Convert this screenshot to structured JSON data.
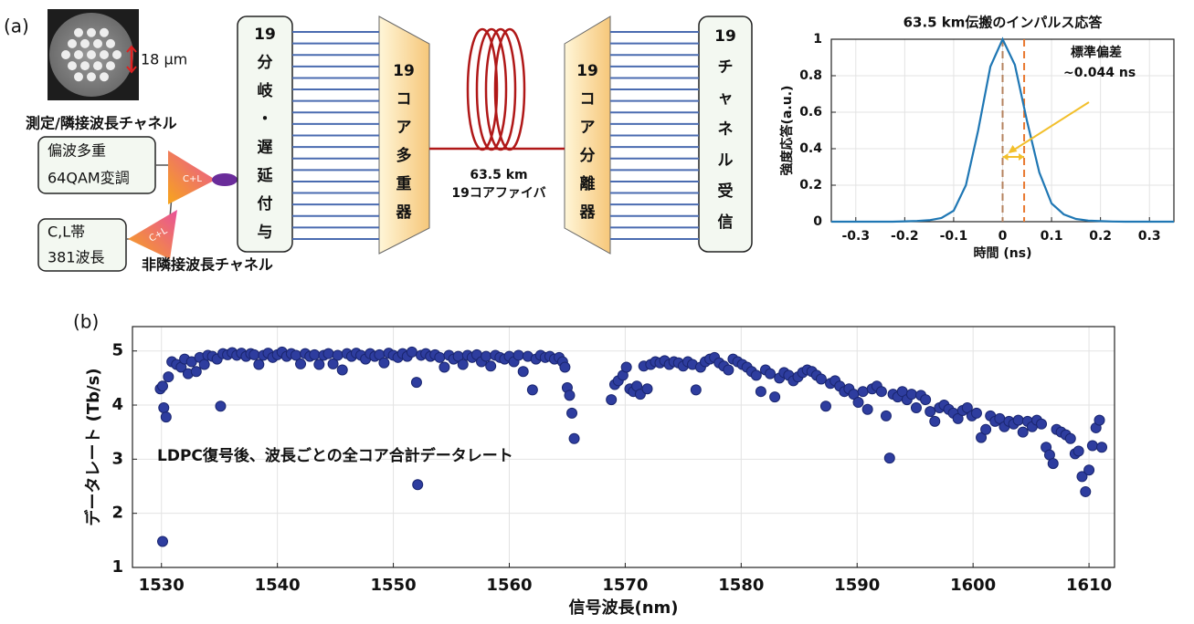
{
  "diagram": {
    "panel_label": "(a)",
    "core_pitch": "18 μm",
    "measured_channel": "測定/隣接波長チャネル",
    "modulation_box": [
      "偏波多重",
      "64QAM変調"
    ],
    "combiner_label": "C+L",
    "band_box": [
      "C,L帯",
      "381波長"
    ],
    "non_adjacent_channel": "非隣接波長チャネル",
    "splitter": [
      "19",
      "分",
      "岐",
      "・",
      "遅",
      "延",
      "付",
      "与"
    ],
    "mux": [
      "19",
      "コ",
      "ア",
      "多",
      "重",
      "器"
    ],
    "fiber": [
      "63.5 km",
      "19コアファイバ"
    ],
    "demux": [
      "19",
      "コ",
      "ア",
      "分",
      "離",
      "器"
    ],
    "receiver": [
      "19",
      "チ",
      "ャ",
      "ネ",
      "ル",
      "受",
      "信"
    ]
  },
  "chart_data": [
    {
      "type": "line",
      "title": "63.5 km伝搬のインパルス応答",
      "x": [
        -0.35,
        -0.325,
        -0.3,
        -0.275,
        -0.25,
        -0.225,
        -0.2,
        -0.175,
        -0.15,
        -0.125,
        -0.1,
        -0.075,
        -0.05,
        -0.025,
        0,
        0.025,
        0.05,
        0.075,
        0.1,
        0.125,
        0.15,
        0.175,
        0.2,
        0.225,
        0.25,
        0.275,
        0.3,
        0.325,
        0.35
      ],
      "values": [
        0,
        0,
        0,
        0,
        0,
        0,
        0.002,
        0.004,
        0.008,
        0.02,
        0.06,
        0.2,
        0.5,
        0.85,
        1,
        0.86,
        0.55,
        0.27,
        0.1,
        0.04,
        0.015,
        0.006,
        0.003,
        0.001,
        0,
        0,
        0,
        0,
        0
      ],
      "color": "#1f77b4",
      "xlim": [
        -0.35,
        0.35
      ],
      "xticks": [
        -0.3,
        -0.2,
        -0.1,
        0,
        0.1,
        0.2,
        0.3
      ],
      "ylim": [
        0,
        1
      ],
      "yticks": [
        0,
        0.2,
        0.4,
        0.6,
        0.8,
        1
      ],
      "xlabel": "時間 (ns)",
      "ylabel": "強度応答(a.u.)",
      "grid": true,
      "vlines": [
        0,
        0.044
      ],
      "vline_colors": [
        "#b5835f",
        "#e8772e"
      ],
      "annotation": [
        "標準偏差",
        "~0.044 ns"
      ],
      "annotation_color": "#f2bf2b"
    },
    {
      "type": "scatter",
      "panel_label": "(b)",
      "annotation": "LDPC復号後、波長ごとの全コア合計データレート",
      "x": [
        1529.9,
        1530.1,
        1530.2,
        1530.4,
        1530.1,
        1530.6,
        1530.9,
        1531.3,
        1531.7,
        1532.0,
        1532.3,
        1532.6,
        1533.0,
        1533.3,
        1533.7,
        1534.0,
        1534.4,
        1534.8,
        1535.1,
        1535.3,
        1535.7,
        1536.1,
        1536.5,
        1536.9,
        1537.3,
        1537.7,
        1538.0,
        1538.4,
        1538.8,
        1539.2,
        1539.6,
        1540.0,
        1540.4,
        1540.8,
        1541.2,
        1541.6,
        1542.0,
        1542.4,
        1542.8,
        1543.2,
        1543.6,
        1544.0,
        1544.4,
        1544.8,
        1545.2,
        1545.6,
        1546.0,
        1546.4,
        1546.8,
        1547.2,
        1547.6,
        1548.0,
        1548.4,
        1548.8,
        1549.2,
        1549.6,
        1550.0,
        1550.4,
        1550.8,
        1551.2,
        1551.6,
        1552.0,
        1552.1,
        1552.4,
        1552.8,
        1553.2,
        1553.6,
        1554.0,
        1554.4,
        1554.8,
        1555.2,
        1555.6,
        1556.0,
        1556.4,
        1556.8,
        1557.2,
        1557.6,
        1558.0,
        1558.4,
        1558.8,
        1559.2,
        1559.6,
        1560.0,
        1560.4,
        1560.8,
        1561.2,
        1561.6,
        1562.0,
        1562.3,
        1562.7,
        1563.1,
        1563.5,
        1563.9,
        1564.3,
        1564.6,
        1564.8,
        1565.0,
        1565.2,
        1565.4,
        1565.6,
        1568.8,
        1569.1,
        1569.4,
        1569.8,
        1570.1,
        1570.4,
        1570.7,
        1571.0,
        1571.3,
        1571.6,
        1571.9,
        1572.2,
        1572.6,
        1573.0,
        1573.4,
        1573.8,
        1574.2,
        1574.6,
        1575.0,
        1575.4,
        1575.8,
        1576.1,
        1576.5,
        1576.9,
        1577.3,
        1577.7,
        1578.1,
        1578.5,
        1578.9,
        1579.3,
        1579.7,
        1580.1,
        1580.5,
        1580.9,
        1581.3,
        1581.7,
        1582.1,
        1582.5,
        1582.9,
        1583.3,
        1583.7,
        1584.1,
        1584.5,
        1584.9,
        1585.3,
        1585.7,
        1586.1,
        1586.5,
        1586.9,
        1587.3,
        1587.7,
        1588.1,
        1588.5,
        1588.9,
        1589.3,
        1589.7,
        1590.1,
        1590.5,
        1590.9,
        1591.3,
        1591.7,
        1592.1,
        1592.5,
        1592.8,
        1593.1,
        1593.5,
        1593.9,
        1594.3,
        1594.7,
        1595.1,
        1595.5,
        1595.9,
        1596.3,
        1596.7,
        1597.1,
        1597.5,
        1597.9,
        1598.3,
        1598.7,
        1599.1,
        1599.5,
        1599.9,
        1600.3,
        1600.7,
        1601.1,
        1601.5,
        1601.9,
        1602.3,
        1602.7,
        1603.1,
        1603.5,
        1603.9,
        1604.3,
        1604.7,
        1605.1,
        1605.5,
        1605.9,
        1606.3,
        1606.6,
        1606.9,
        1607.2,
        1607.6,
        1608.0,
        1608.4,
        1608.8,
        1609.1,
        1609.4,
        1609.7,
        1610.0,
        1610.3,
        1610.6,
        1610.9,
        1611.1
      ],
      "values": [
        4.3,
        4.35,
        3.95,
        3.78,
        1.48,
        4.52,
        4.8,
        4.75,
        4.7,
        4.85,
        4.58,
        4.8,
        4.62,
        4.88,
        4.75,
        4.92,
        4.9,
        4.85,
        3.98,
        4.95,
        4.93,
        4.97,
        4.92,
        4.96,
        4.9,
        4.95,
        4.93,
        4.75,
        4.92,
        4.96,
        4.88,
        4.93,
        4.98,
        4.9,
        4.95,
        4.92,
        4.76,
        4.95,
        4.9,
        4.93,
        4.75,
        4.92,
        4.95,
        4.76,
        4.92,
        4.65,
        4.95,
        4.9,
        4.96,
        4.92,
        4.85,
        4.95,
        4.9,
        4.93,
        4.78,
        4.96,
        4.92,
        4.88,
        4.95,
        4.9,
        4.98,
        4.42,
        2.53,
        4.92,
        4.95,
        4.9,
        4.93,
        4.88,
        4.7,
        4.92,
        4.85,
        4.9,
        4.75,
        4.92,
        4.88,
        4.93,
        4.8,
        4.9,
        4.72,
        4.92,
        4.88,
        4.85,
        4.9,
        4.8,
        4.92,
        4.62,
        4.9,
        4.28,
        4.85,
        4.92,
        4.88,
        4.9,
        4.85,
        4.88,
        4.8,
        4.7,
        4.32,
        4.18,
        3.85,
        3.38,
        4.1,
        4.38,
        4.45,
        4.55,
        4.7,
        4.3,
        4.25,
        4.35,
        4.2,
        4.72,
        4.3,
        4.75,
        4.8,
        4.78,
        4.82,
        4.75,
        4.8,
        4.78,
        4.72,
        4.8,
        4.75,
        4.28,
        4.7,
        4.8,
        4.85,
        4.88,
        4.78,
        4.72,
        4.65,
        4.85,
        4.8,
        4.75,
        4.7,
        4.62,
        4.55,
        4.25,
        4.65,
        4.58,
        4.15,
        4.5,
        4.6,
        4.55,
        4.45,
        4.52,
        4.6,
        4.65,
        4.62,
        4.55,
        4.48,
        3.98,
        4.4,
        4.45,
        4.35,
        4.25,
        4.3,
        4.2,
        4.05,
        4.25,
        3.92,
        4.3,
        4.35,
        4.25,
        3.8,
        3.02,
        4.2,
        4.15,
        4.25,
        4.1,
        4.2,
        3.95,
        4.18,
        4.1,
        3.88,
        3.7,
        3.95,
        4.0,
        3.92,
        3.85,
        3.75,
        3.9,
        3.95,
        3.8,
        3.85,
        3.4,
        3.55,
        3.8,
        3.7,
        3.75,
        3.6,
        3.7,
        3.65,
        3.72,
        3.5,
        3.7,
        3.6,
        3.72,
        3.65,
        3.22,
        3.08,
        2.92,
        3.55,
        3.5,
        3.45,
        3.38,
        3.1,
        3.15,
        2.68,
        2.4,
        2.8,
        3.25,
        3.58,
        3.72,
        3.22
      ],
      "color": "#2e3d9f",
      "xlim": [
        1527.5,
        1612.2
      ],
      "xticks": [
        1530,
        1540,
        1550,
        1560,
        1570,
        1580,
        1590,
        1600,
        1610
      ],
      "ylim": [
        1,
        5.45
      ],
      "yticks": [
        1,
        2,
        3,
        4,
        5
      ],
      "xlabel": "信号波長(nm)",
      "ylabel": "データレート (Tb/s)",
      "grid": true
    }
  ]
}
